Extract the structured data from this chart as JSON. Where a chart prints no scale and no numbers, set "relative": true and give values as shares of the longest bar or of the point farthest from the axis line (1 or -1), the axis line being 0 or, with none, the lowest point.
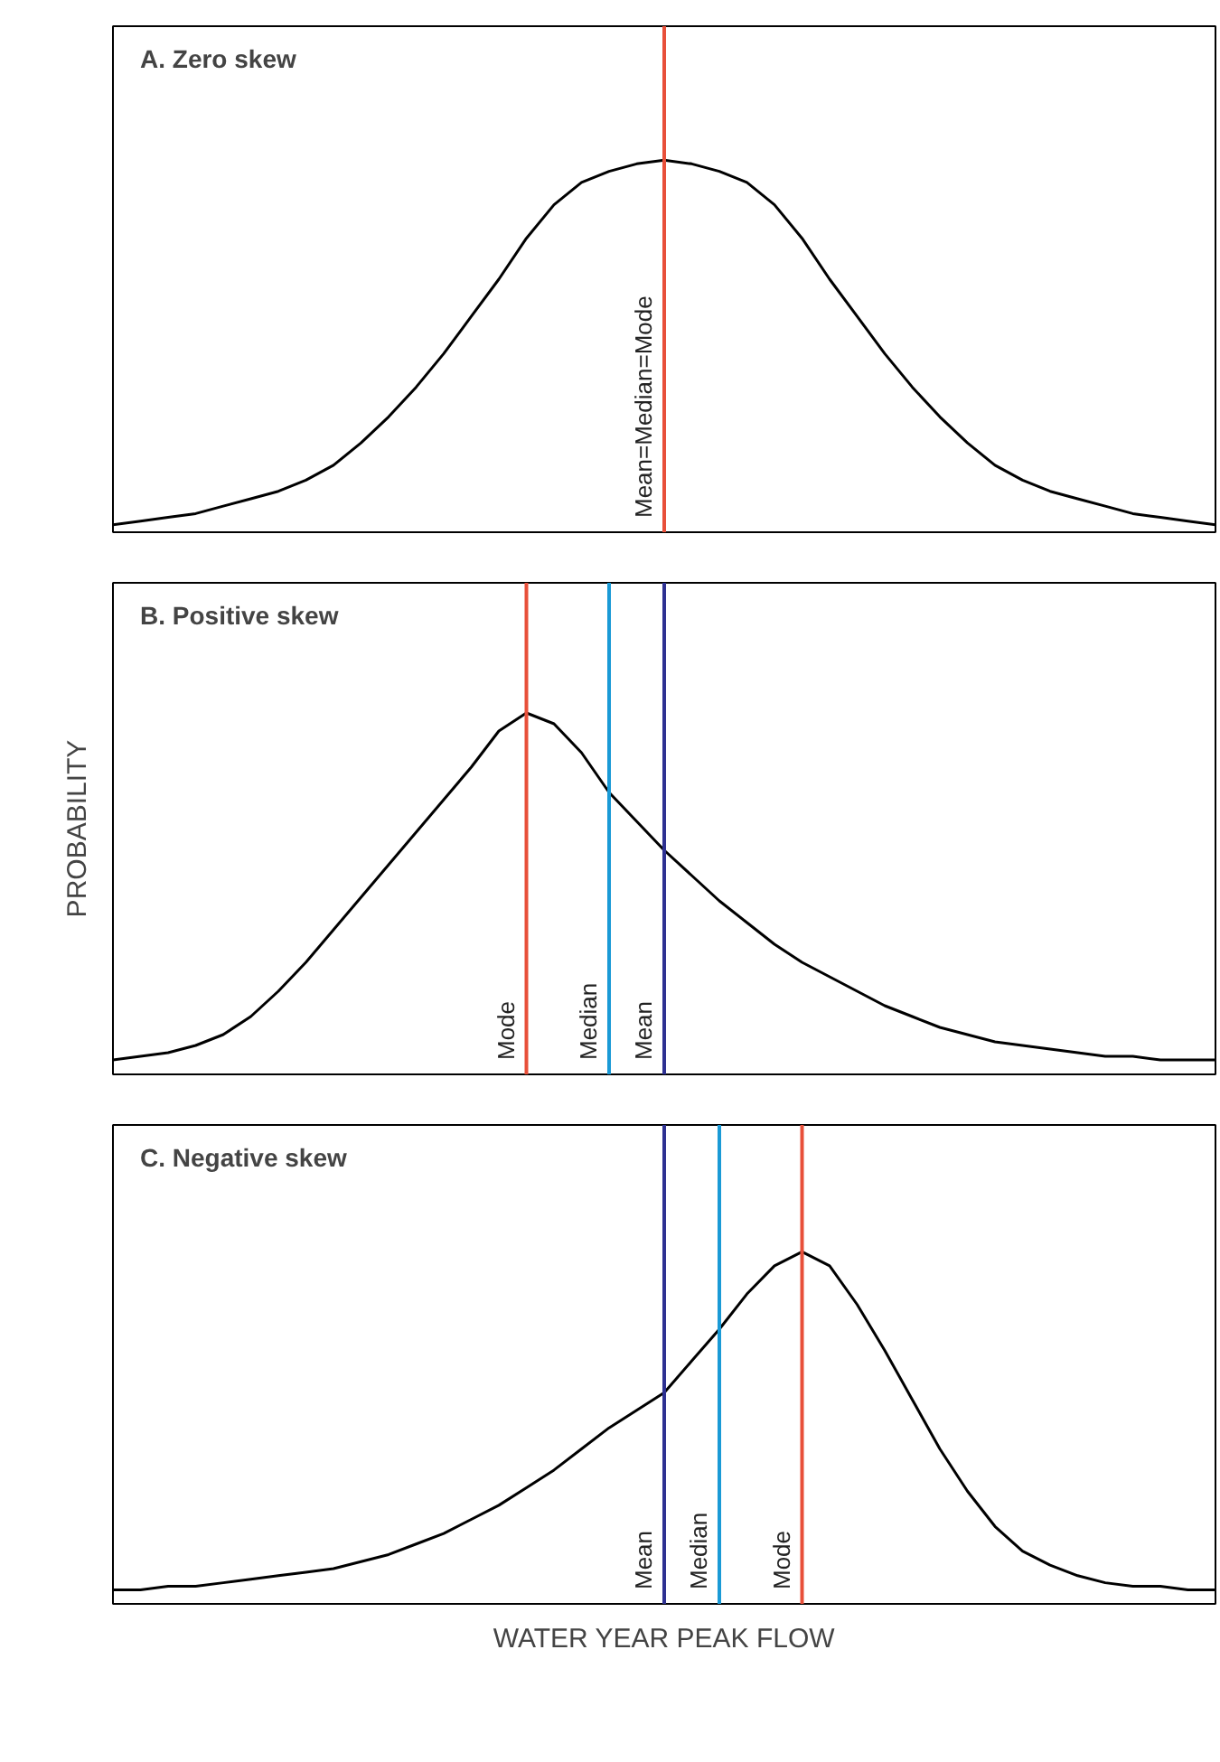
{
  "chart_data": [
    {
      "type": "line",
      "title": "A. Zero skew",
      "relative": true,
      "grid": false,
      "marker": "none",
      "line_style": "solid",
      "categories": [
        null,
        null,
        null,
        null,
        null,
        null,
        null,
        null,
        null,
        null,
        null,
        null,
        null,
        null,
        null,
        null,
        null,
        null,
        null,
        null,
        null,
        null,
        null,
        null,
        null,
        null,
        null,
        null,
        null,
        null,
        null,
        null,
        null,
        null,
        null,
        null,
        null,
        null,
        null,
        null,
        null
      ],
      "series": [
        {
          "color": "#000000",
          "values": [
            0.02,
            0.03,
            0.04,
            0.05,
            0.07,
            0.09,
            0.11,
            0.14,
            0.18,
            0.24,
            0.31,
            0.39,
            0.48,
            0.58,
            0.68,
            0.79,
            0.88,
            0.94,
            0.97,
            0.99,
            1.0,
            0.99,
            0.97,
            0.94,
            0.88,
            0.79,
            0.68,
            0.58,
            0.48,
            0.39,
            0.31,
            0.24,
            0.18,
            0.14,
            0.11,
            0.09,
            0.07,
            0.05,
            0.04,
            0.03,
            0.02
          ]
        }
      ],
      "annotations": [
        "Mean=Median=Mode"
      ]
    },
    {
      "type": "line",
      "title": "B. Positive skew",
      "ylabel": "PROBABILITY",
      "relative": true,
      "grid": false,
      "marker": "none",
      "line_style": "solid",
      "categories": [
        null,
        null,
        null,
        null,
        null,
        null,
        null,
        null,
        null,
        null,
        null,
        null,
        null,
        null,
        null,
        null,
        null,
        null,
        null,
        null,
        null,
        null,
        null,
        null,
        null,
        null,
        null,
        null,
        null,
        null,
        null,
        null,
        null,
        null,
        null,
        null,
        null,
        null,
        null,
        null,
        null
      ],
      "series": [
        {
          "color": "#000000",
          "values": [
            0.04,
            0.05,
            0.06,
            0.08,
            0.11,
            0.16,
            0.23,
            0.31,
            0.4,
            0.49,
            0.58,
            0.67,
            0.76,
            0.85,
            0.95,
            1.0,
            0.97,
            0.89,
            0.78,
            0.7,
            0.62,
            0.55,
            0.48,
            0.42,
            0.36,
            0.31,
            0.27,
            0.23,
            0.19,
            0.16,
            0.13,
            0.11,
            0.09,
            0.08,
            0.07,
            0.06,
            0.05,
            0.05,
            0.04,
            0.04,
            0.04
          ]
        }
      ],
      "annotations": [
        "Mode",
        "Median",
        "Mean"
      ]
    },
    {
      "type": "line",
      "title": "C. Negative skew",
      "xlabel": "WATER YEAR PEAK FLOW",
      "relative": true,
      "grid": false,
      "marker": "none",
      "line_style": "solid",
      "categories": [
        null,
        null,
        null,
        null,
        null,
        null,
        null,
        null,
        null,
        null,
        null,
        null,
        null,
        null,
        null,
        null,
        null,
        null,
        null,
        null,
        null,
        null,
        null,
        null,
        null,
        null,
        null,
        null,
        null,
        null,
        null,
        null,
        null,
        null,
        null,
        null,
        null,
        null,
        null,
        null,
        null
      ],
      "series": [
        {
          "color": "#000000",
          "values": [
            0.04,
            0.04,
            0.05,
            0.05,
            0.06,
            0.07,
            0.08,
            0.09,
            0.1,
            0.12,
            0.14,
            0.17,
            0.2,
            0.24,
            0.28,
            0.33,
            0.38,
            0.44,
            0.5,
            0.55,
            0.6,
            0.69,
            0.78,
            0.88,
            0.96,
            1.0,
            0.96,
            0.85,
            0.72,
            0.58,
            0.44,
            0.32,
            0.22,
            0.15,
            0.11,
            0.08,
            0.06,
            0.05,
            0.05,
            0.04,
            0.04
          ]
        }
      ],
      "annotations": [
        "Mean",
        "Median",
        "Mode"
      ]
    }
  ]
}
